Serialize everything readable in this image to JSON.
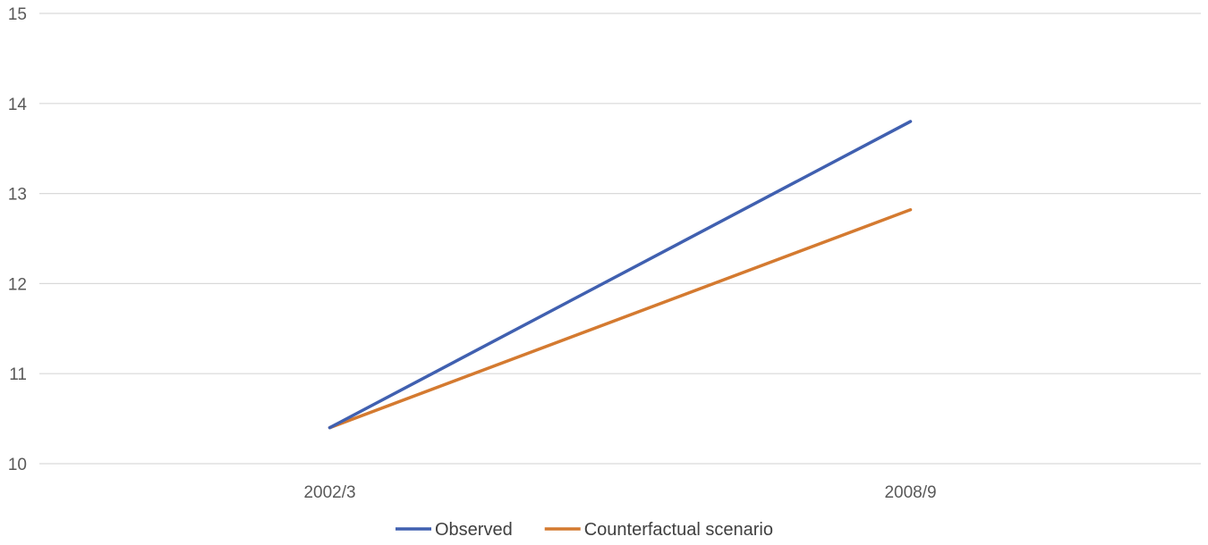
{
  "chart_data": {
    "type": "line",
    "title": "",
    "xlabel": "",
    "ylabel": "",
    "categories": [
      "2002/3",
      "2008/9"
    ],
    "ylim": [
      10,
      15
    ],
    "yticks": [
      "10",
      "11",
      "12",
      "13",
      "14",
      "15"
    ],
    "grid": true,
    "legend_position": "bottom",
    "series": [
      {
        "name": "Observed",
        "values": [
          10.4,
          13.8
        ],
        "color": "#4060b0"
      },
      {
        "name": "Counterfactual scenario",
        "values": [
          10.4,
          12.82
        ],
        "color": "#d47a30"
      }
    ]
  }
}
